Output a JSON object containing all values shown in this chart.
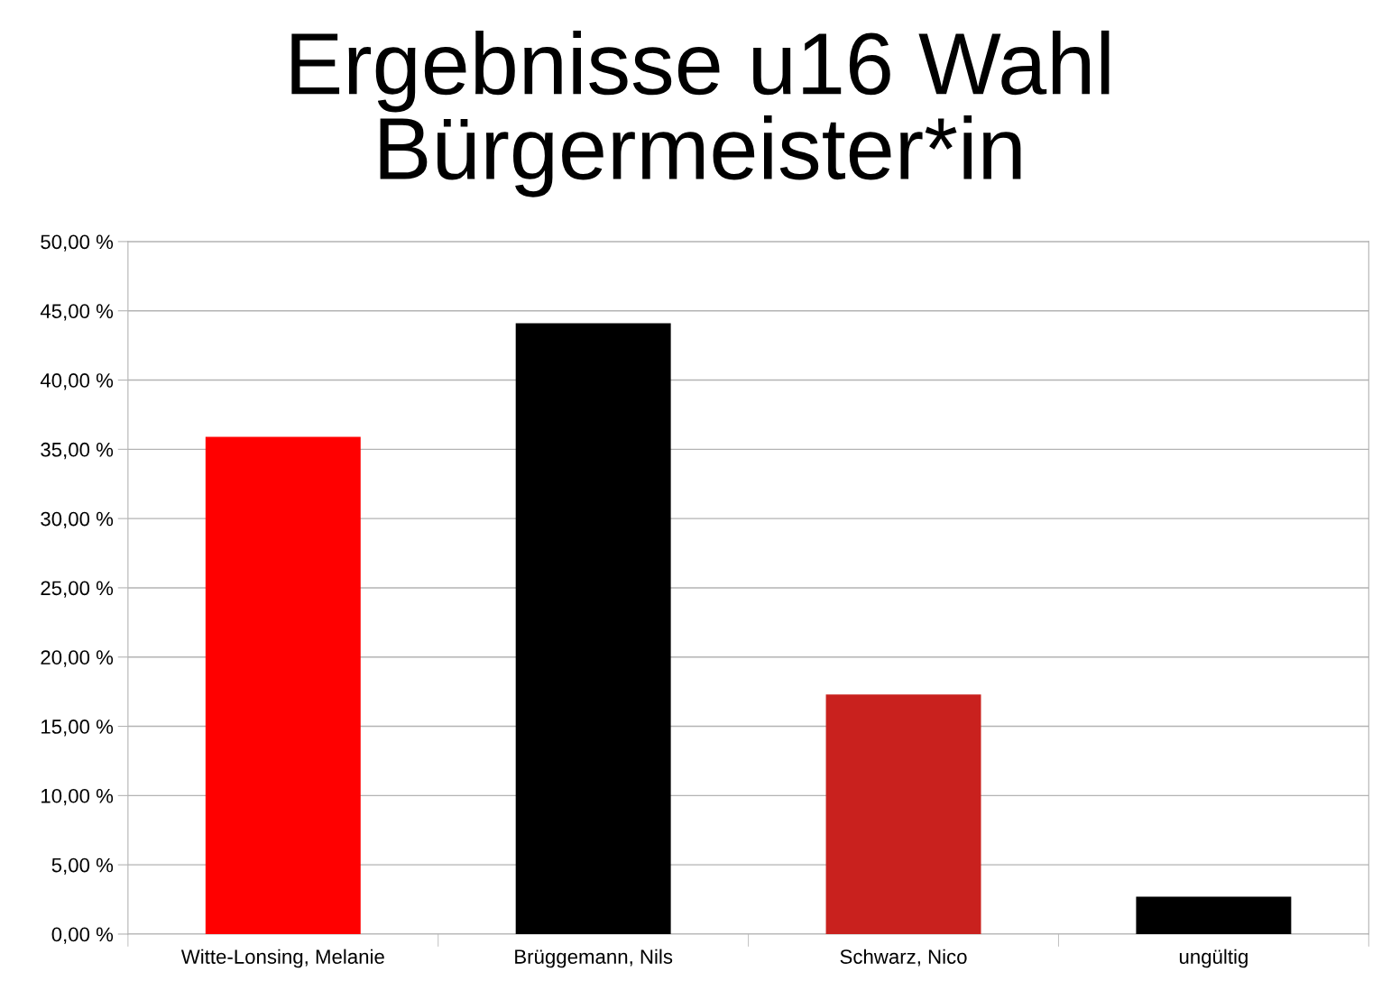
{
  "chart_data": {
    "type": "bar",
    "title": "Ergebnisse u16 Wahl\nBürgermeister*in",
    "categories": [
      "Witte-Lonsing, Melanie",
      "Brüggemann, Nils",
      "Schwarz, Nico",
      "ungültig"
    ],
    "values": [
      35.9,
      44.1,
      17.3,
      2.7
    ],
    "colors": [
      "#ff0000",
      "#000000",
      "#c9211e",
      "#000000"
    ],
    "ylim": [
      0,
      50
    ],
    "yticks": [
      {
        "value": 0,
        "label": "0,00 %"
      },
      {
        "value": 5,
        "label": "5,00 %"
      },
      {
        "value": 10,
        "label": "10,00 %"
      },
      {
        "value": 15,
        "label": "15,00 %"
      },
      {
        "value": 20,
        "label": "20,00 %"
      },
      {
        "value": 25,
        "label": "25,00 %"
      },
      {
        "value": 30,
        "label": "30,00 %"
      },
      {
        "value": 35,
        "label": "35,00 %"
      },
      {
        "value": 40,
        "label": "40,00 %"
      },
      {
        "value": 45,
        "label": "45,00 %"
      },
      {
        "value": 50,
        "label": "50,00 %"
      }
    ],
    "grid": "y",
    "legend": false
  }
}
